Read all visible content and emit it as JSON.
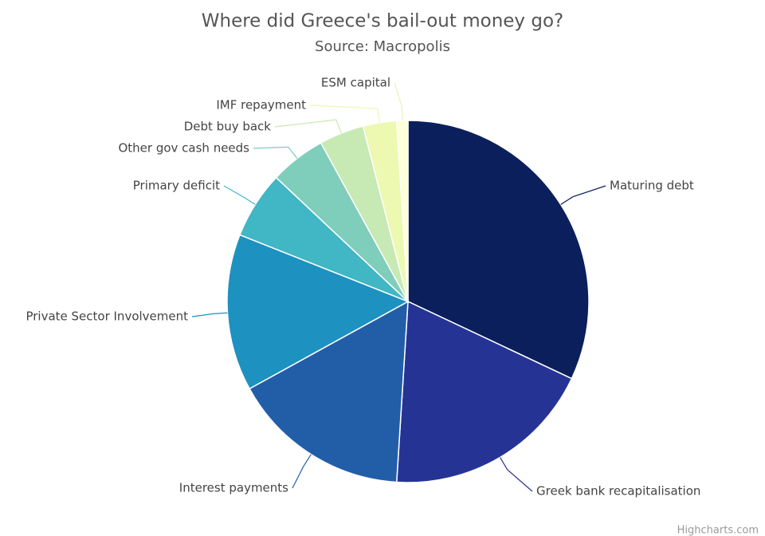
{
  "chart_data": {
    "type": "pie",
    "title": "Where did Greece's bail-out money go?",
    "subtitle": "Source: Macropolis",
    "credits": "Highcharts.com",
    "categories": [
      "Maturing debt",
      "Greek bank recapitalisation",
      "Interest payments",
      "Private Sector Involvement",
      "Primary deficit",
      "Other gov cash needs",
      "Debt buy back",
      "IMF repayment",
      "ESM capital"
    ],
    "values": [
      32,
      19,
      16,
      14,
      6,
      5,
      4,
      3,
      1
    ],
    "colors": [
      "#0a1f5c",
      "#253494",
      "#225ea8",
      "#1d91c0",
      "#41b6c4",
      "#7fcdbb",
      "#c7e9b4",
      "#edf8b1",
      "#ffffd9"
    ]
  }
}
